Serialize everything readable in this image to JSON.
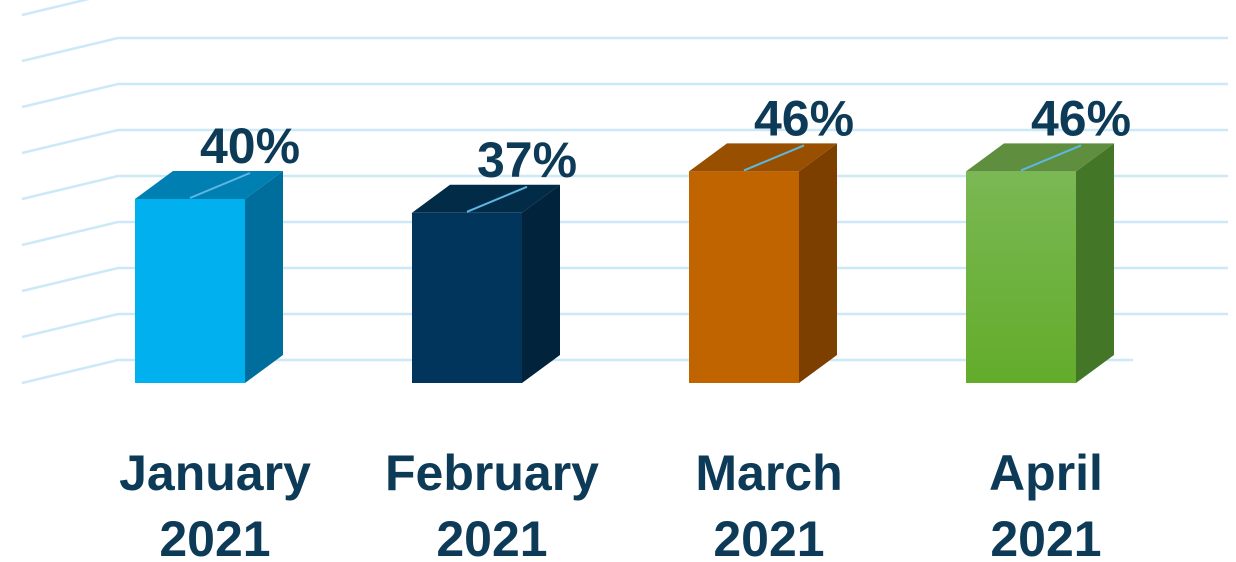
{
  "chart_data": {
    "type": "bar",
    "style": "3d-column",
    "categories": [
      [
        "January",
        "2021"
      ],
      [
        "February",
        "2021"
      ],
      [
        "March",
        "2021"
      ],
      [
        "April",
        "2021"
      ]
    ],
    "values": [
      40,
      37,
      46,
      46
    ],
    "data_labels": [
      "40%",
      "37%",
      "46%",
      "46%"
    ],
    "ylim": [
      0,
      85
    ],
    "grid": true,
    "legend": "none",
    "title": "",
    "xlabel": "",
    "ylabel": "",
    "colors": {
      "bars": [
        {
          "front": "#00b0ef",
          "side": "#006e9c",
          "top": "#0080b2"
        },
        {
          "front": "#02355b",
          "side": "#01233b",
          "top": "#022b48"
        },
        {
          "front": "#c06400",
          "side": "#7c3f00",
          "top": "#985000"
        },
        {
          "front": "#7ab854",
          "side": "#447628",
          "top": "#5f8e3e",
          "front_bottom": "#63ac2a"
        }
      ],
      "grid": "#cde9f8",
      "text": "#0d3a57",
      "leader": "#5cb8e0"
    }
  }
}
